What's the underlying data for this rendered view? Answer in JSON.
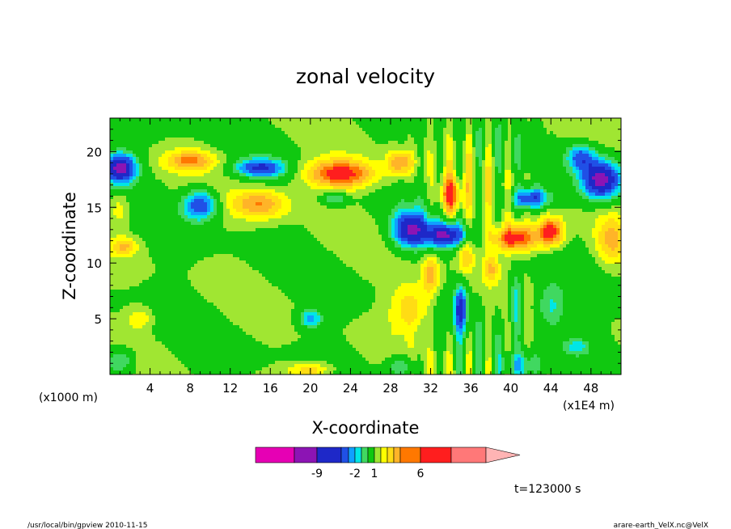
{
  "chart_data": {
    "type": "heatmap",
    "title": "zonal velocity",
    "xlabel": "X-coordinate",
    "ylabel": "Z-coordinate",
    "x_unit_left": "(x1000 m)",
    "x_unit_right": "(x1E4 m)",
    "xlim": [
      0,
      51
    ],
    "ylim": [
      0,
      23
    ],
    "x_ticks": [
      4,
      8,
      12,
      16,
      20,
      24,
      28,
      32,
      36,
      40,
      44,
      48
    ],
    "y_ticks": [
      5,
      10,
      15,
      20
    ],
    "colorbar": {
      "colors": [
        "#e600b4",
        "#8c14b4",
        "#1e28c8",
        "#2050e6",
        "#10a0ff",
        "#00e6e6",
        "#40d860",
        "#10c810",
        "#a0e632",
        "#ffff00",
        "#ffdc14",
        "#ffb428",
        "#ff7800",
        "#ff1e1e",
        "#ff7878"
      ],
      "extend_color": "#ffb4b4",
      "tick_labels": [
        "-9",
        "-2",
        "1",
        "6"
      ]
    },
    "blobs": [
      {
        "x": 1,
        "y": 18.5,
        "sx": 1.6,
        "sy": 1.3,
        "v": -9
      },
      {
        "x": 8,
        "y": 19.2,
        "sx": 2.5,
        "sy": 0.9,
        "v": 4
      },
      {
        "x": 9,
        "y": 15.2,
        "sx": 1.7,
        "sy": 1.4,
        "v": -6
      },
      {
        "x": 15,
        "y": 18.5,
        "sx": 2.4,
        "sy": 0.8,
        "v": -6
      },
      {
        "x": 15,
        "y": 15.3,
        "sx": 2.8,
        "sy": 1.3,
        "v": 4
      },
      {
        "x": 23,
        "y": 18.0,
        "sx": 3.5,
        "sy": 1.3,
        "v": 6
      },
      {
        "x": 22.5,
        "y": 15.8,
        "sx": 1.2,
        "sy": 0.6,
        "v": -3
      },
      {
        "x": 29,
        "y": 19.0,
        "sx": 1.3,
        "sy": 1.1,
        "v": 4
      },
      {
        "x": 30,
        "y": 13.0,
        "sx": 1.8,
        "sy": 1.6,
        "v": -8
      },
      {
        "x": 33.5,
        "y": 12.5,
        "sx": 1.8,
        "sy": 1.0,
        "v": -8
      },
      {
        "x": 34,
        "y": 16.0,
        "sx": 1.2,
        "sy": 1.6,
        "v": 5
      },
      {
        "x": 40.5,
        "y": 12.2,
        "sx": 2.3,
        "sy": 1.2,
        "v": 6
      },
      {
        "x": 44,
        "y": 12.8,
        "sx": 1.3,
        "sy": 1.3,
        "v": 6
      },
      {
        "x": 42,
        "y": 15.8,
        "sx": 1.8,
        "sy": 0.9,
        "v": -6
      },
      {
        "x": 49,
        "y": 17.5,
        "sx": 1.9,
        "sy": 1.7,
        "v": -9
      },
      {
        "x": 47,
        "y": 19.5,
        "sx": 1.4,
        "sy": 1.2,
        "v": -5
      },
      {
        "x": 50,
        "y": 12.0,
        "sx": 1.5,
        "sy": 2.2,
        "v": 3
      },
      {
        "x": 1.5,
        "y": 11.5,
        "sx": 1.3,
        "sy": 0.8,
        "v": 3
      },
      {
        "x": 1,
        "y": 14.8,
        "sx": 1.0,
        "sy": 1.5,
        "v": 2
      },
      {
        "x": 20,
        "y": 5.0,
        "sx": 1.2,
        "sy": 0.8,
        "v": -4
      },
      {
        "x": 30,
        "y": 6.0,
        "sx": 2.0,
        "sy": 2.2,
        "v": 3
      },
      {
        "x": 35,
        "y": 6.0,
        "sx": 0.7,
        "sy": 2.0,
        "v": -6
      },
      {
        "x": 35.5,
        "y": 10.5,
        "sx": 0.8,
        "sy": 1.4,
        "v": 3
      },
      {
        "x": 40.5,
        "y": 6.5,
        "sx": 0.6,
        "sy": 2.6,
        "v": -4
      },
      {
        "x": 44,
        "y": 6.0,
        "sx": 1.6,
        "sy": 2.2,
        "v": -3
      },
      {
        "x": 3,
        "y": 5.0,
        "sx": 1.2,
        "sy": 1.0,
        "v": 2
      },
      {
        "x": 1,
        "y": 1.2,
        "sx": 1.5,
        "sy": 1.2,
        "v": -3
      },
      {
        "x": 20,
        "y": 0.4,
        "sx": 2.2,
        "sy": 0.7,
        "v": 3
      },
      {
        "x": 41,
        "y": 0.8,
        "sx": 2.0,
        "sy": 1.2,
        "v": -3
      },
      {
        "x": 46.5,
        "y": 2.5,
        "sx": 1.4,
        "sy": 0.8,
        "v": -3
      },
      {
        "x": 29,
        "y": 0.7,
        "sx": 1.4,
        "sy": 1.0,
        "v": -3
      },
      {
        "x": 32,
        "y": 9.0,
        "sx": 0.8,
        "sy": 1.6,
        "v": 4
      },
      {
        "x": 38,
        "y": 9.5,
        "sx": 0.8,
        "sy": 1.2,
        "v": 3
      }
    ]
  },
  "annotations": {
    "time": "t=123000 s",
    "footer_left": "/usr/local/bin/gpview  2010-11-15",
    "footer_right": "arare-earth_VelX.nc@VelX"
  },
  "colors": {
    "background_green": "#10c810",
    "background_yellow": "#ffff00"
  }
}
